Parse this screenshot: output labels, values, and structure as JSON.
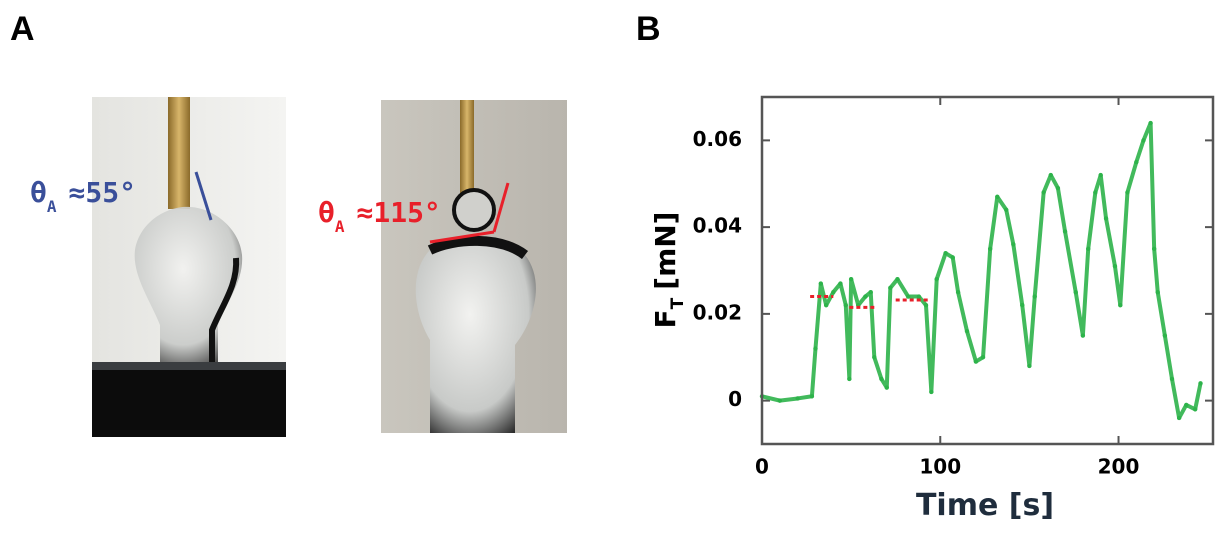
{
  "panel_labels": [
    "A",
    "B"
  ],
  "photos": [
    {
      "angle_symbol": "θ",
      "angle_subscript": "A",
      "angle_text": "≈55°",
      "color": "#3a4f9a"
    },
    {
      "angle_symbol": "θ",
      "angle_subscript": "A",
      "angle_text": "≈115°",
      "color": "#e8202a"
    }
  ],
  "chart_data": {
    "type": "line",
    "x_label": "Time [s]",
    "y_label": {
      "symbol": "F",
      "subscript": "T",
      "unit": "[mN]"
    },
    "x": [
      0,
      10,
      20,
      28,
      30,
      33,
      36,
      40,
      44,
      47,
      49,
      50,
      54,
      58,
      61,
      63,
      67,
      70,
      72,
      76,
      82,
      88,
      92,
      95,
      98,
      103,
      107,
      110,
      115,
      120,
      124,
      128,
      132,
      137,
      141,
      146,
      150,
      153,
      158,
      162,
      166,
      170,
      176,
      180,
      183,
      187,
      190,
      193,
      198,
      201,
      205,
      210,
      214,
      218,
      220,
      222,
      226,
      230,
      234,
      238,
      243,
      246
    ],
    "values": [
      0.001,
      0.0,
      0.0005,
      0.001,
      0.012,
      0.027,
      0.022,
      0.025,
      0.027,
      0.022,
      0.005,
      0.028,
      0.022,
      0.024,
      0.025,
      0.01,
      0.005,
      0.003,
      0.026,
      0.028,
      0.024,
      0.024,
      0.022,
      0.002,
      0.028,
      0.034,
      0.033,
      0.025,
      0.016,
      0.009,
      0.01,
      0.035,
      0.047,
      0.044,
      0.036,
      0.022,
      0.008,
      0.024,
      0.048,
      0.052,
      0.049,
      0.039,
      0.025,
      0.015,
      0.035,
      0.048,
      0.052,
      0.042,
      0.031,
      0.022,
      0.048,
      0.055,
      0.06,
      0.064,
      0.035,
      0.025,
      0.015,
      0.005,
      -0.004,
      -0.001,
      -0.002,
      0.004
    ],
    "color": "#2db34a",
    "reference_lines": [
      {
        "x": [
          27,
          40
        ],
        "y": 0.024
      },
      {
        "x": [
          49,
          63
        ],
        "y": 0.0215
      },
      {
        "x": [
          75,
          93
        ],
        "y": 0.0232
      }
    ],
    "reference_color": "#e8202a",
    "xlim": [
      0,
      253
    ],
    "xticks": [
      0,
      100,
      200
    ],
    "ylim": [
      -0.01,
      0.07
    ],
    "yticks": [
      0,
      0.02,
      0.04,
      0.06
    ]
  }
}
